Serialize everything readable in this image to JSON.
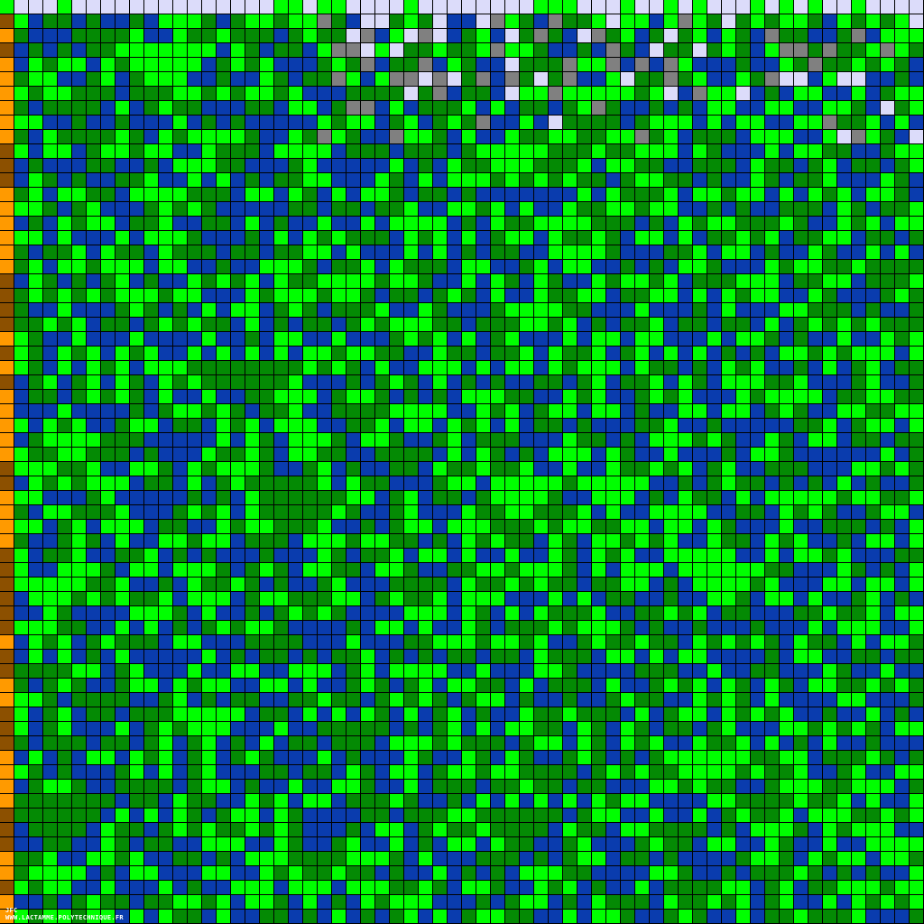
{
  "palette": {
    "blue": "#0a3cae",
    "bright_green": "#00ff00",
    "dark_green": "#048a04",
    "lavender": "#dcdcfa",
    "gray": "#808080",
    "orange": "#ff9a00",
    "brown": "#8c5000",
    "grid_line": "#000000"
  },
  "grid": {
    "columns": 64,
    "rows": 64
  },
  "signature": {
    "author": "JFC",
    "url": "WWW.LACTAMME.POLYTECHNIQUE.FR"
  }
}
